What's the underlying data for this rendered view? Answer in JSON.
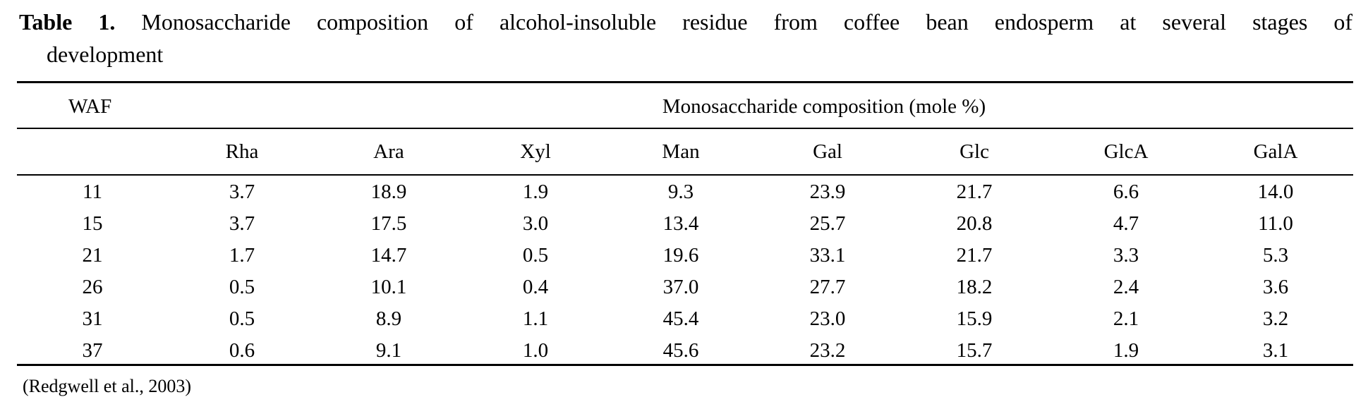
{
  "caption": {
    "label": "Table 1.",
    "text_line1": "Monosaccharide composition of alcohol-insoluble residue from coffee bean endosperm at several stages of",
    "text_line2": "development"
  },
  "table": {
    "row_header": "WAF",
    "group_header": "Monosaccharide composition (mole %)",
    "columns": [
      "Rha",
      "Ara",
      "Xyl",
      "Man",
      "Gal",
      "Glc",
      "GlcA",
      "GalA"
    ],
    "rows": [
      [
        "11",
        "3.7",
        "18.9",
        "1.9",
        "9.3",
        "23.9",
        "21.7",
        "6.6",
        "14.0"
      ],
      [
        "15",
        "3.7",
        "17.5",
        "3.0",
        "13.4",
        "25.7",
        "20.8",
        "4.7",
        "11.0"
      ],
      [
        "21",
        "1.7",
        "14.7",
        "0.5",
        "19.6",
        "33.1",
        "21.7",
        "3.3",
        "5.3"
      ],
      [
        "26",
        "0.5",
        "10.1",
        "0.4",
        "37.0",
        "27.7",
        "18.2",
        "2.4",
        "3.6"
      ],
      [
        "31",
        "0.5",
        "8.9",
        "1.1",
        "45.4",
        "23.0",
        "15.9",
        "2.1",
        "3.2"
      ],
      [
        "37",
        "0.6",
        "9.1",
        "1.0",
        "45.6",
        "23.2",
        "15.7",
        "1.9",
        "3.1"
      ]
    ]
  },
  "source": "(Redgwell et al., 2003)"
}
